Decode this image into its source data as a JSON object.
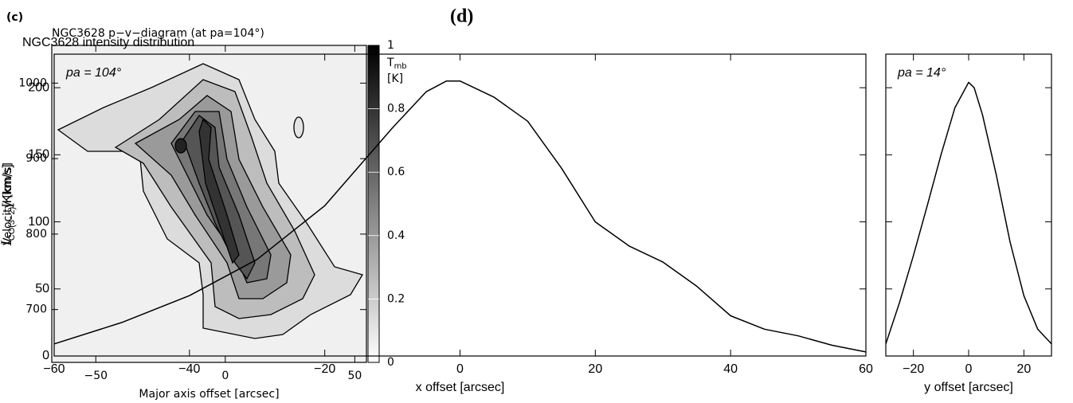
{
  "chart_data": [
    {
      "type": "contour",
      "panel_label": "(c)",
      "title": "NGC3628    p−v−diagram (at pa=104°)",
      "x_label": "Major axis offset [arcsec]",
      "y_label": "Velocity [km/s]",
      "xlim": [
        -67,
        54.5
      ],
      "ylim": [
        630,
        1050
      ],
      "xticks": [
        {
          "value": -50,
          "label": "−50"
        },
        0,
        50
      ],
      "yticks": [
        700,
        800,
        900,
        1000
      ],
      "colorbar": {
        "label": {
          "symbol": "T",
          "subscript": "mb",
          "unit": "[K]"
        },
        "clim": [
          0,
          1
        ],
        "ticks": [
          0,
          0.2,
          0.4,
          0.6,
          0.8,
          1
        ]
      }
    },
    {
      "type": "line",
      "panel_label": "(d)",
      "title": "NGC3628  intensity distribution",
      "annotation": "pa = 104°",
      "x_label": "x offset [arcsec]",
      "y_label": {
        "symbol": "I",
        "subscript": "CO(3−2)",
        "unit": "[Kkm/s]"
      },
      "xlim": [
        -60,
        60
      ],
      "ylim": [
        0,
        225
      ],
      "xticks": [
        {
          "value": -60,
          "label": "−60"
        },
        {
          "value": -40,
          "label": "−40"
        },
        {
          "value": -20,
          "label": "−20"
        },
        0,
        20,
        40,
        60
      ],
      "yticks": [
        0,
        50,
        100,
        150,
        200
      ],
      "show_ytick_labels": true,
      "color": "#000000",
      "x": [
        -60,
        -50,
        -40,
        -30,
        -20,
        -10,
        -5,
        -2,
        0,
        5,
        10,
        15,
        20,
        25,
        30,
        35,
        40,
        45,
        50,
        55,
        60
      ],
      "values": [
        9,
        25,
        45,
        72,
        112,
        170,
        197,
        205,
        205,
        193,
        175,
        140,
        100,
        82,
        70,
        52,
        30,
        20,
        15,
        8,
        3
      ]
    },
    {
      "type": "line",
      "annotation": "pa = 14°",
      "x_label": "y offset [arcsec]",
      "xlim": [
        -30,
        30
      ],
      "ylim": [
        0,
        225
      ],
      "xticks": [
        {
          "value": -20,
          "label": "−20"
        },
        0,
        20
      ],
      "yticks": [
        0,
        50,
        100,
        150,
        200
      ],
      "show_ytick_labels": false,
      "color": "#000000",
      "x": [
        -30,
        -25,
        -20,
        -15,
        -10,
        -5,
        0,
        2,
        5,
        10,
        15,
        20,
        25,
        30
      ],
      "values": [
        9,
        40,
        75,
        112,
        150,
        185,
        204,
        200,
        180,
        135,
        85,
        45,
        20,
        9
      ]
    }
  ]
}
